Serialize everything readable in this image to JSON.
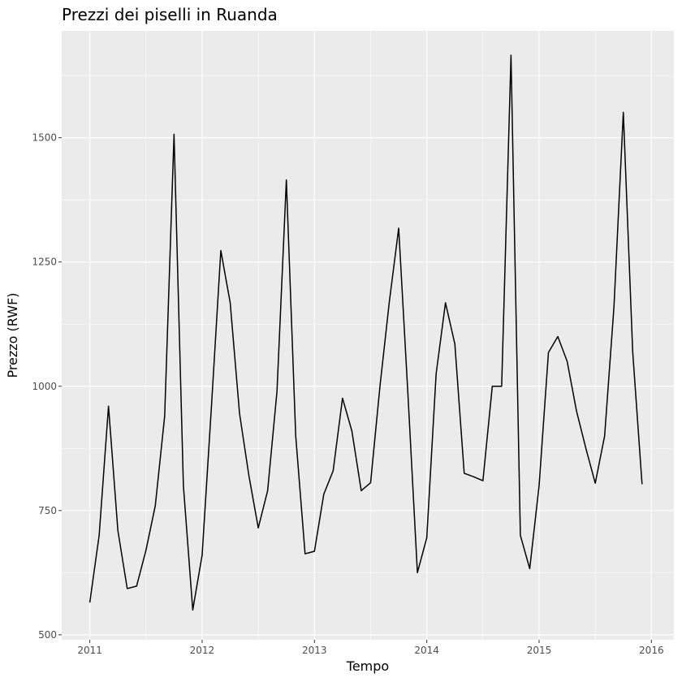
{
  "chart_data": {
    "type": "line",
    "title": "Prezzi dei piselli in Ruanda",
    "xlabel": "Tempo",
    "ylabel": "Prezzo (RWF)",
    "xlim": [
      2010.75,
      2016.2
    ],
    "ylim": [
      490,
      1715
    ],
    "x_ticks": [
      2011,
      2012,
      2013,
      2014,
      2015,
      2016
    ],
    "x_tick_labels": [
      "2011",
      "2012",
      "2013",
      "2014",
      "2015",
      "2016"
    ],
    "y_ticks": [
      500,
      750,
      1000,
      1250,
      1500
    ],
    "y_tick_labels": [
      "500",
      "750",
      "1000",
      "1250",
      "1500"
    ],
    "grid": true,
    "background": "#ebebeb",
    "line_color": "#000000",
    "series": [
      {
        "x_start": 2011,
        "frequency": "monthly",
        "values": [
          565,
          700,
          960,
          710,
          593,
          598,
          670,
          760,
          940,
          1507,
          800,
          550,
          660,
          960,
          1273,
          1168,
          945,
          820,
          715,
          790,
          990,
          1415,
          900,
          663,
          668,
          783,
          830,
          976,
          910,
          790,
          806,
          1000,
          1170,
          1318,
          980,
          625,
          695,
          1025,
          1168,
          1085,
          825,
          818,
          810,
          1000,
          1000,
          1666,
          700,
          633,
          800,
          1068,
          1100,
          1050,
          950,
          875,
          805,
          900,
          1160,
          1551,
          1070,
          803
        ]
      }
    ]
  }
}
